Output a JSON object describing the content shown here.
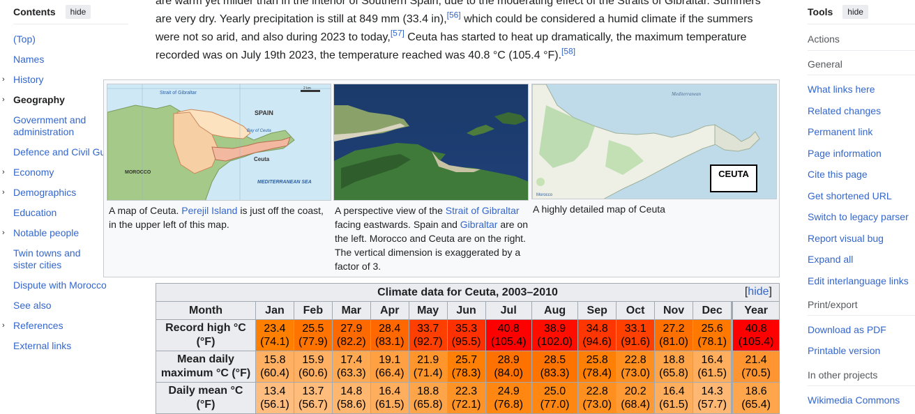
{
  "toc": {
    "title": "Contents",
    "hide_label": "hide",
    "items": [
      {
        "label": "(Top)"
      },
      {
        "label": "Names"
      },
      {
        "label": "History",
        "expandable": true
      },
      {
        "label": "Geography",
        "expandable": true,
        "active": true
      },
      {
        "label": "Government and administration"
      },
      {
        "label": "Defence and Civil Guard"
      },
      {
        "label": "Economy",
        "expandable": true
      },
      {
        "label": "Demographics",
        "expandable": true
      },
      {
        "label": "Education"
      },
      {
        "label": "Notable people",
        "expandable": true
      },
      {
        "label": "Twin towns and sister cities"
      },
      {
        "label": "Dispute with Morocco"
      },
      {
        "label": "See also"
      },
      {
        "label": "References",
        "expandable": true
      },
      {
        "label": "External links"
      }
    ]
  },
  "article": {
    "line1": "are warm yet milder than in the interior of Southern Spain, due to the moderating effect of the Straits of Gibraltar. Summers",
    "line2a": "are very dry. Yearly precipitation is still at 849 mm (33.4 in),",
    "ref56": "[56]",
    "line2b": " which could be considered a humid climate if the summers",
    "line3a": "were not so arid, and also during 2023 to today,",
    "ref57": "[57]",
    "line3b": " Ceuta has started to heat up dramatically, the maximum temperature",
    "line4": "recorded was on July 19th 2023, the temperature reached was 40.8 °C (105.4 °F).",
    "ref58": "[58]"
  },
  "gallery": {
    "map1": {
      "strait_label": "Strait of Gibraltar",
      "scale_label": "2 km",
      "spain_label": "SPAIN",
      "ceuta_label": "Ceuta",
      "morocco_label": "MOROCCO",
      "med_label": "MEDITERRANEAN SEA",
      "bay_label": "Bay of Ceuta",
      "caption_a": "A map of Ceuta. ",
      "caption_link": "Perejil Island",
      "caption_b": " is just off the coast, in the upper left of this map."
    },
    "map2": {
      "caption_a": "A perspective view of the ",
      "caption_link1": "Strait of Gibraltar",
      "caption_b": " facing eastwards. Spain and ",
      "caption_link2": "Gibraltar",
      "caption_c": " are on the left. Morocco and Ceuta are on the right. The vertical dimension is exaggerated by a factor of 3."
    },
    "map3": {
      "sea_label": "Mediterranean",
      "ceuta_badge": "CEUTA",
      "morocco_label": "Morocco",
      "caption": "A highly detailed map of Ceuta"
    }
  },
  "climate": {
    "title": "Climate data for Ceuta, 2003–2010",
    "hide_open": "[",
    "hide_label": "hide",
    "hide_close": "]",
    "month_header": "Month",
    "months": [
      "Jan",
      "Feb",
      "Mar",
      "Apr",
      "May",
      "Jun",
      "Jul",
      "Aug",
      "Sep",
      "Oct",
      "Nov",
      "Dec",
      "Year"
    ],
    "rows": [
      {
        "label_line1": "Record high °C",
        "label_line2": "(°F)",
        "c": [
          "23.4",
          "25.5",
          "27.9",
          "28.4",
          "33.7",
          "35.3",
          "40.8",
          "38.9",
          "34.8",
          "33.1",
          "27.2",
          "25.6",
          "40.8"
        ],
        "f": [
          "(74.1)",
          "(77.9)",
          "(82.2)",
          "(83.1)",
          "(92.7)",
          "(95.5)",
          "(105.4)",
          "(102.0)",
          "(94.6)",
          "(91.6)",
          "(81.0)",
          "(78.1)",
          "(105.4)"
        ],
        "colors": [
          "#ff8000",
          "#ff7400",
          "#ff6a00",
          "#ff6700",
          "#ff3f00",
          "#ff3100",
          "#ff0000",
          "#ff0e00",
          "#ff3600",
          "#ff4000",
          "#ff7000",
          "#ff7800",
          "#ff0000"
        ]
      },
      {
        "label_line1": "Mean daily",
        "label_line2": "maximum °C (°F)",
        "c": [
          "15.8",
          "15.9",
          "17.4",
          "19.1",
          "21.9",
          "25.7",
          "28.9",
          "28.5",
          "25.8",
          "22.8",
          "18.8",
          "16.4",
          "21.4"
        ],
        "f": [
          "(60.4)",
          "(60.6)",
          "(63.3)",
          "(66.4)",
          "(71.4)",
          "(78.3)",
          "(84.0)",
          "(83.3)",
          "(78.4)",
          "(73.0)",
          "(65.8)",
          "(61.5)",
          "(70.5)"
        ],
        "colors": [
          "#ffb062",
          "#ffb062",
          "#ffaa52",
          "#ffa142",
          "#ff962c",
          "#ff8004",
          "#ff7200",
          "#ff7400",
          "#ff8004",
          "#ff8f1f",
          "#ffa549",
          "#ffae5d",
          "#ff9530"
        ]
      },
      {
        "label_line1": "Daily mean °C",
        "label_line2": "(°F)",
        "c": [
          "13.4",
          "13.7",
          "14.8",
          "16.4",
          "18.8",
          "22.3",
          "24.9",
          "25.0",
          "22.8",
          "20.2",
          "16.4",
          "14.3",
          "18.6"
        ],
        "f": [
          "(56.1)",
          "(56.7)",
          "(58.6)",
          "(61.5)",
          "(65.8)",
          "(72.1)",
          "(76.8)",
          "(77.0)",
          "(73.0)",
          "(68.4)",
          "(61.5)",
          "(57.7)",
          "(65.4)"
        ],
        "colors": [
          "#ffbe80",
          "#ffbc7b",
          "#ffb66e",
          "#ffae5d",
          "#ffa549",
          "#ff9325",
          "#ff8712",
          "#ff8712",
          "#ff8f1f",
          "#ff9a35",
          "#ffae5d",
          "#ffb873",
          "#ffa64c"
        ]
      }
    ]
  },
  "tools": {
    "title": "Tools",
    "hide_label": "hide",
    "actions_label": "Actions",
    "general_label": "General",
    "general_items": [
      "What links here",
      "Related changes",
      "Permanent link",
      "Page information",
      "Cite this page",
      "Get shortened URL",
      "Switch to legacy parser",
      "Report visual bug",
      "Expand all",
      "Edit interlanguage links"
    ],
    "print_label": "Print/export",
    "print_items": [
      "Download as PDF",
      "Printable version"
    ],
    "other_label": "In other projects",
    "other_items": [
      "Wikimedia Commons"
    ]
  }
}
